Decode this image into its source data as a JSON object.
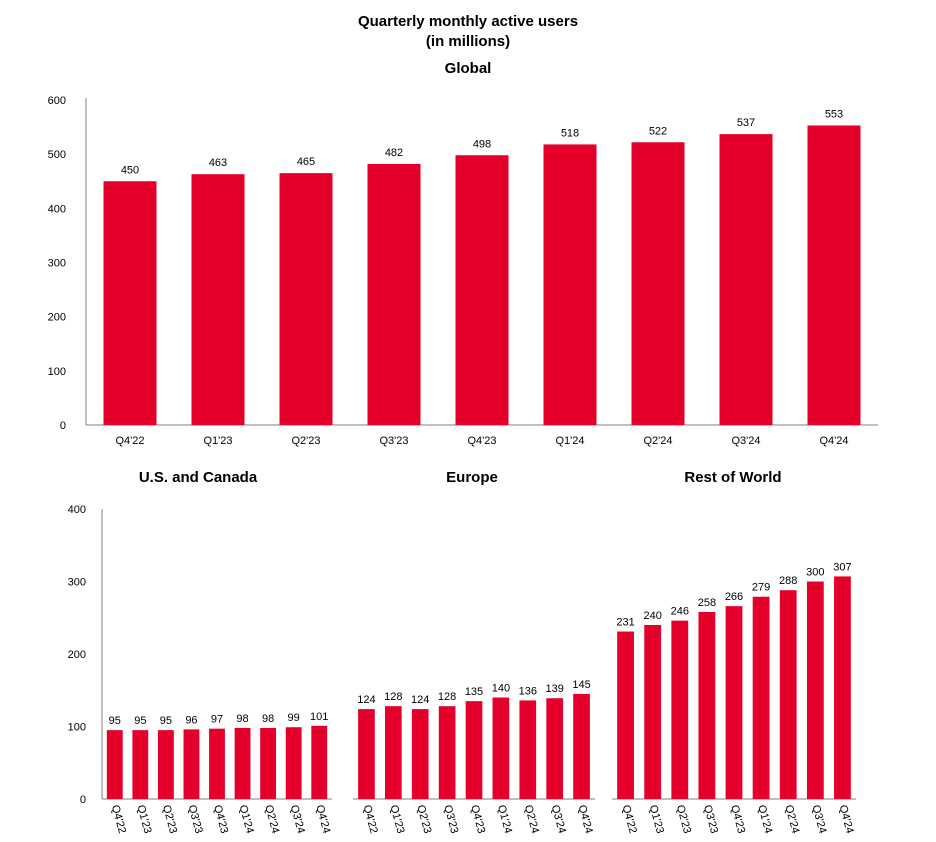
{
  "header": {
    "line1": "Quarterly monthly active users",
    "line2": "(in millions)"
  },
  "colors": {
    "bar": "#e4002b"
  },
  "chart_data": [
    {
      "type": "bar",
      "title": "Global",
      "categories": [
        "Q4'22",
        "Q1'23",
        "Q2'23",
        "Q3'23",
        "Q4'23",
        "Q1'24",
        "Q2'24",
        "Q3'24",
        "Q4'24"
      ],
      "values": [
        450,
        463,
        465,
        482,
        498,
        518,
        522,
        537,
        553
      ],
      "yticks": [
        0,
        100,
        200,
        300,
        400,
        500,
        600
      ],
      "ylim": [
        0,
        600
      ],
      "xlabel": "",
      "ylabel": ""
    },
    {
      "type": "bar",
      "title": "U.S. and Canada",
      "categories": [
        "Q4'22",
        "Q1'23",
        "Q2'23",
        "Q3'23",
        "Q4'23",
        "Q1'24",
        "Q2'24",
        "Q3'24",
        "Q4'24"
      ],
      "values": [
        95,
        95,
        95,
        96,
        97,
        98,
        98,
        99,
        101
      ],
      "yticks": [
        0,
        100,
        200,
        300,
        400
      ],
      "ylim": [
        0,
        400
      ]
    },
    {
      "type": "bar",
      "title": "Europe",
      "categories": [
        "Q4'22",
        "Q1'23",
        "Q2'23",
        "Q3'23",
        "Q4'23",
        "Q1'24",
        "Q2'24",
        "Q3'24",
        "Q4'24"
      ],
      "values": [
        124,
        128,
        124,
        128,
        135,
        140,
        136,
        139,
        145
      ],
      "ylim": [
        0,
        400
      ]
    },
    {
      "type": "bar",
      "title": "Rest of World",
      "categories": [
        "Q4'22",
        "Q1'23",
        "Q2'23",
        "Q3'23",
        "Q4'23",
        "Q1'24",
        "Q2'24",
        "Q3'24",
        "Q4'24"
      ],
      "values": [
        231,
        240,
        246,
        258,
        266,
        279,
        288,
        300,
        307
      ],
      "ylim": [
        0,
        400
      ]
    }
  ]
}
